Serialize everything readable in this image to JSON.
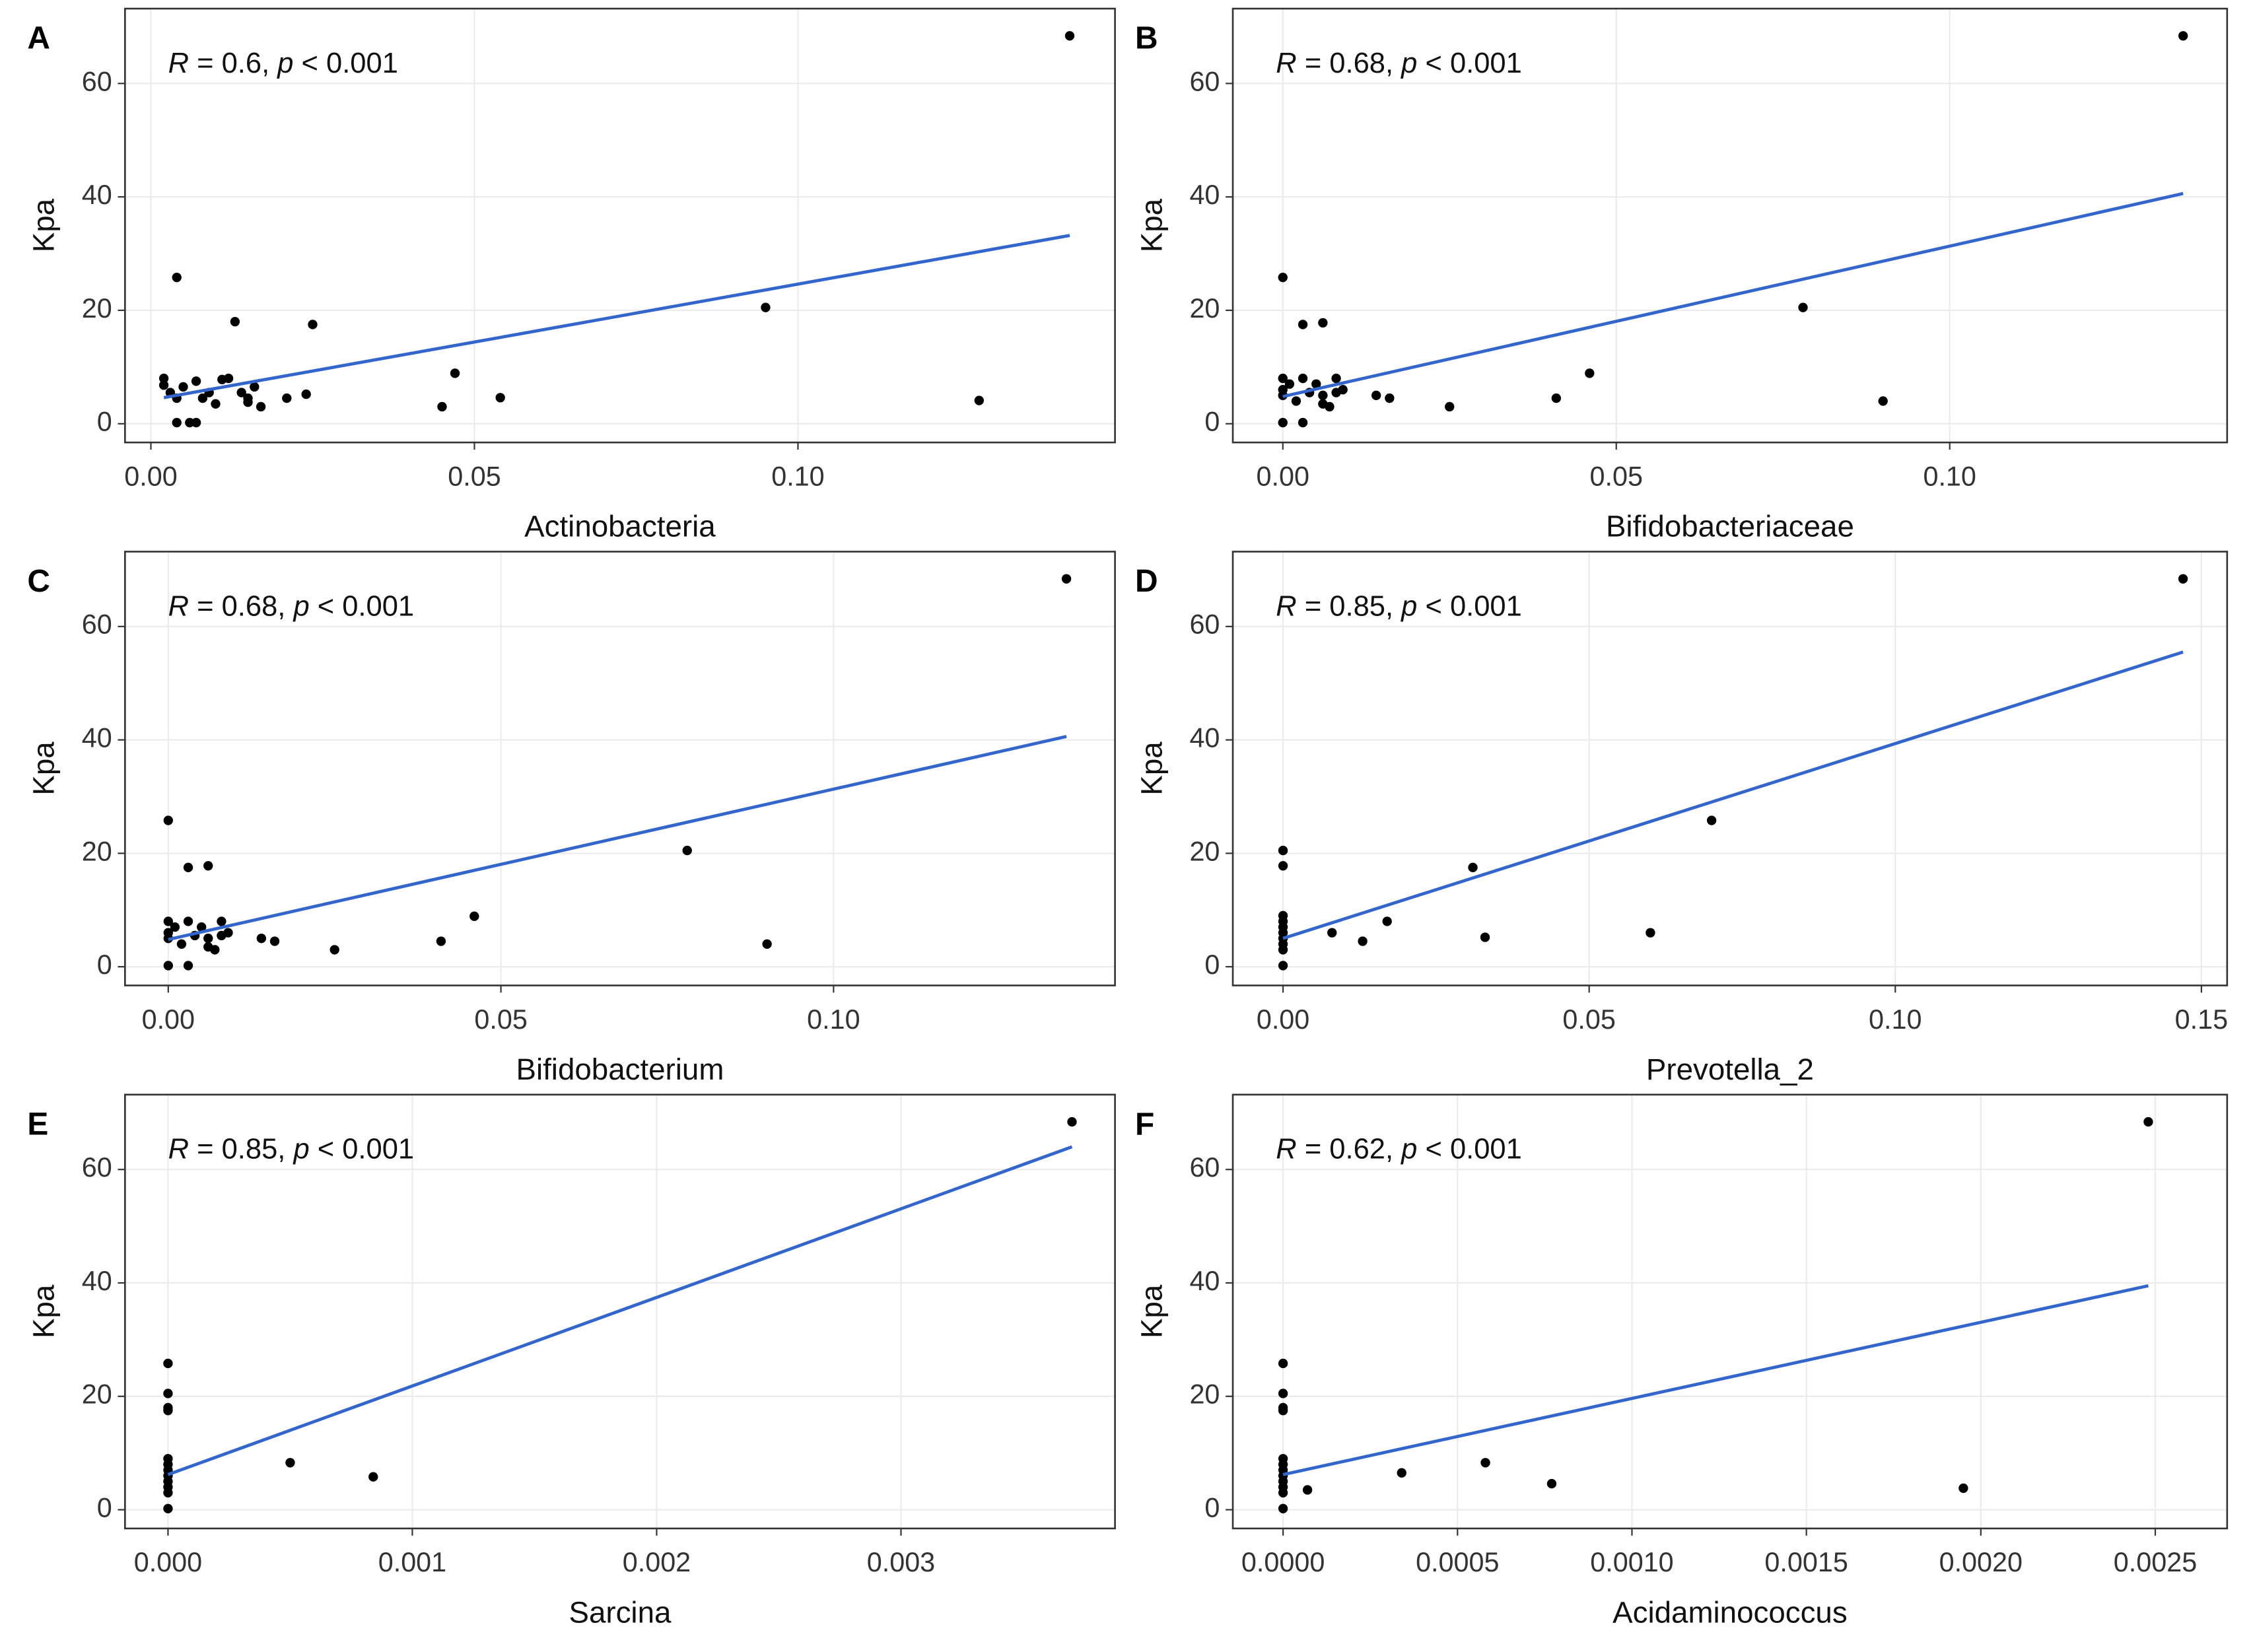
{
  "chart_data": [
    {
      "type": "scatter",
      "label": "A",
      "annotation": [
        "R",
        " = 0.6, ",
        "p",
        " < 0.001"
      ],
      "xlabel": "Actinobacteria",
      "ylabel": "Kpa",
      "grid": true,
      "color": "#000000",
      "xlim": [
        -0.004,
        0.149
      ],
      "ylim": [
        -3.3,
        73.2
      ],
      "xticks": [
        {
          "value": 0,
          "label": "0.00"
        },
        {
          "value": 0.05,
          "label": "0.05"
        },
        {
          "value": 0.1,
          "label": "0.10"
        }
      ],
      "yticks": [
        0,
        20,
        40,
        60
      ],
      "x": [
        0.002,
        0.002,
        0.003,
        0.004,
        0.004,
        0.006,
        0.007,
        0.005,
        0.007,
        0.008,
        0.009,
        0.01,
        0.011,
        0.012,
        0.014,
        0.015,
        0.015,
        0.016,
        0.017,
        0.021,
        0.024,
        0.013,
        0.004,
        0.025,
        0.045,
        0.047,
        0.054,
        0.095,
        0.128,
        0.142
      ],
      "y": [
        8,
        6.8,
        5.5,
        4.5,
        0.2,
        0.2,
        0.2,
        6.5,
        7.5,
        4.5,
        5.5,
        3.5,
        7.8,
        8,
        5.5,
        4.5,
        3.8,
        6.5,
        3,
        4.5,
        5.2,
        18,
        25.8,
        17.5,
        3,
        8.9,
        4.6,
        20.5,
        4.1,
        68.4
      ],
      "fit": {
        "color": "#3366cc",
        "x": [
          0.002,
          0.142
        ],
        "y": [
          4.6,
          33.2
        ]
      }
    },
    {
      "type": "scatter",
      "label": "B",
      "annotation": [
        "R",
        " = 0.68, ",
        "p",
        " < 0.001"
      ],
      "xlabel": "Bifidobacteriaceae",
      "ylabel": "Kpa",
      "grid": true,
      "color": "#000000",
      "xlim": [
        -0.0075,
        0.1416
      ],
      "ylim": [
        -3.3,
        73.2
      ],
      "xticks": [
        {
          "value": 0,
          "label": "0.00"
        },
        {
          "value": 0.05,
          "label": "0.05"
        },
        {
          "value": 0.1,
          "label": "0.10"
        }
      ],
      "yticks": [
        0,
        20,
        40,
        60
      ],
      "x": [
        0,
        0,
        0,
        0,
        0.001,
        0.002,
        0.003,
        0.003,
        0.004,
        0.005,
        0.006,
        0.006,
        0.007,
        0.008,
        0.008,
        0.009,
        0,
        0.003,
        0.006,
        0.014,
        0.016,
        0.025,
        0.041,
        0.046,
        0.078,
        0.09,
        0.135
      ],
      "y": [
        0.2,
        5,
        6,
        8,
        7,
        4,
        8,
        0.2,
        5.5,
        7,
        3.5,
        5,
        3,
        5.5,
        8,
        6,
        25.8,
        17.5,
        17.8,
        5,
        4.5,
        3,
        4.5,
        8.9,
        20.5,
        4,
        68.4
      ],
      "fit": {
        "color": "#3366cc",
        "x": [
          0,
          0.135
        ],
        "y": [
          4.8,
          40.6
        ]
      }
    },
    {
      "type": "scatter",
      "label": "C",
      "annotation": [
        "R",
        " = 0.68, ",
        "p",
        " < 0.001"
      ],
      "xlabel": "Bifidobacterium",
      "ylabel": "Kpa",
      "grid": true,
      "color": "#000000",
      "xlim": [
        -0.0065,
        0.1423
      ],
      "ylim": [
        -3.3,
        73.2
      ],
      "xticks": [
        {
          "value": 0,
          "label": "0.00"
        },
        {
          "value": 0.05,
          "label": "0.05"
        },
        {
          "value": 0.1,
          "label": "0.10"
        }
      ],
      "yticks": [
        0,
        20,
        40,
        60
      ],
      "x": [
        0,
        0,
        0,
        0,
        0.001,
        0.002,
        0.003,
        0.003,
        0.004,
        0.005,
        0.006,
        0.006,
        0.007,
        0.008,
        0.008,
        0.009,
        0,
        0.003,
        0.006,
        0.014,
        0.016,
        0.025,
        0.041,
        0.046,
        0.078,
        0.09,
        0.135
      ],
      "y": [
        0.2,
        5,
        6,
        8,
        7,
        4,
        8,
        0.2,
        5.5,
        7,
        3.5,
        5,
        3,
        5.5,
        8,
        6,
        25.8,
        17.5,
        17.8,
        5,
        4.5,
        3,
        4.5,
        8.9,
        20.5,
        4,
        68.4
      ],
      "fit": {
        "color": "#3366cc",
        "x": [
          0,
          0.135
        ],
        "y": [
          4.8,
          40.6
        ]
      }
    },
    {
      "type": "scatter",
      "label": "D",
      "annotation": [
        "R",
        " = 0.85, ",
        "p",
        " < 0.001"
      ],
      "xlabel": "Prevotella_2",
      "ylabel": "Kpa",
      "grid": true,
      "color": "#000000",
      "xlim": [
        -0.0082,
        0.1542
      ],
      "ylim": [
        -3.3,
        73.2
      ],
      "xticks": [
        {
          "value": 0,
          "label": "0.00"
        },
        {
          "value": 0.05,
          "label": "0.05"
        },
        {
          "value": 0.1,
          "label": "0.10"
        },
        {
          "value": 0.15,
          "label": "0.15"
        }
      ],
      "yticks": [
        0,
        20,
        40,
        60
      ],
      "x": [
        0,
        0,
        0,
        0,
        0,
        0,
        0,
        0,
        0,
        0,
        0.008,
        0.013,
        0.017,
        0.031,
        0.033,
        0.06,
        0.07,
        0.147
      ],
      "y": [
        0.2,
        3,
        4,
        5,
        6,
        7,
        8,
        9,
        17.8,
        20.5,
        6,
        4.5,
        8,
        17.5,
        5.2,
        6,
        25.8,
        68.4
      ],
      "fit": {
        "color": "#3366cc",
        "x": [
          0,
          0.147
        ],
        "y": [
          5,
          55.5
        ]
      }
    },
    {
      "type": "scatter",
      "label": "E",
      "annotation": [
        "R",
        " = 0.85, ",
        "p",
        " < 0.001"
      ],
      "xlabel": "Sarcina",
      "ylabel": "Kpa",
      "grid": true,
      "color": "#000000",
      "xlim": [
        -0.000176,
        0.003876
      ],
      "ylim": [
        -3.3,
        73.2
      ],
      "xticks": [
        {
          "value": 0,
          "label": "0.000"
        },
        {
          "value": 0.001,
          "label": "0.001"
        },
        {
          "value": 0.002,
          "label": "0.002"
        },
        {
          "value": 0.003,
          "label": "0.003"
        }
      ],
      "yticks": [
        0,
        20,
        40,
        60
      ],
      "x": [
        0,
        0,
        0,
        0,
        0,
        0,
        0,
        0,
        0,
        0,
        0,
        0,
        0.0005,
        0.00084,
        0.0037
      ],
      "y": [
        0.2,
        3,
        4,
        5,
        6,
        7,
        8,
        9,
        17.5,
        18,
        20.5,
        25.8,
        8.3,
        5.8,
        68.4
      ],
      "fit": {
        "color": "#3366cc",
        "x": [
          0,
          0.0037
        ],
        "y": [
          6.2,
          64
        ]
      }
    },
    {
      "type": "scatter",
      "label": "F",
      "annotation": [
        "R",
        " = 0.62, ",
        "p",
        " < 0.001"
      ],
      "xlabel": "Acidaminococcus",
      "ylabel": "Kpa",
      "grid": true,
      "color": "#000000",
      "xlim": [
        -0.000144,
        0.002706
      ],
      "ylim": [
        -3.3,
        73.2
      ],
      "xticks": [
        {
          "value": 0,
          "label": "0.0000"
        },
        {
          "value": 0.0005,
          "label": "0.0005"
        },
        {
          "value": 0.001,
          "label": "0.0010"
        },
        {
          "value": 0.0015,
          "label": "0.0015"
        },
        {
          "value": 0.002,
          "label": "0.0020"
        },
        {
          "value": 0.0025,
          "label": "0.0025"
        }
      ],
      "yticks": [
        0,
        20,
        40,
        60
      ],
      "x": [
        0,
        0,
        0,
        0,
        0,
        0,
        0,
        0,
        0,
        0,
        0,
        0,
        7e-05,
        0.00034,
        0.00058,
        0.00077,
        0.00195,
        0.00248
      ],
      "y": [
        0.2,
        3,
        4,
        5,
        6,
        7,
        8,
        9,
        17.5,
        18,
        20.5,
        25.8,
        3.5,
        6.5,
        8.3,
        4.6,
        3.8,
        68.4
      ],
      "fit": {
        "color": "#3366cc",
        "x": [
          0,
          0.00248
        ],
        "y": [
          6.2,
          39.5
        ]
      }
    }
  ]
}
